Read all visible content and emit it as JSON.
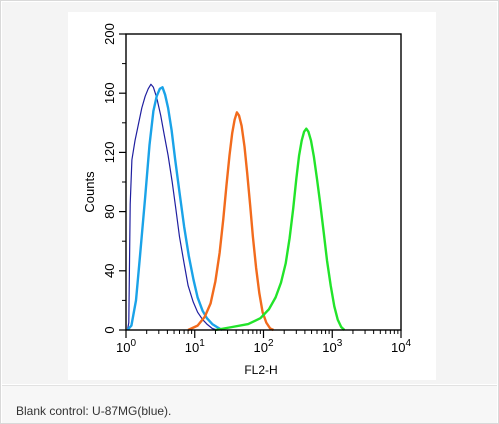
{
  "caption": "Blank control: U-87MG(blue).",
  "chart_data": {
    "type": "area",
    "title": "",
    "xlabel": "FL2-H",
    "ylabel": "Counts",
    "x_scale": "log",
    "xlim": [
      1,
      10000
    ],
    "ylim": [
      0,
      200
    ],
    "x_ticks": [
      {
        "value": 1,
        "base": "10",
        "exp": "0"
      },
      {
        "value": 10,
        "base": "10",
        "exp": "1"
      },
      {
        "value": 100,
        "base": "10",
        "exp": "2"
      },
      {
        "value": 1000,
        "base": "10",
        "exp": "3"
      },
      {
        "value": 10000,
        "base": "10",
        "exp": "4"
      }
    ],
    "y_ticks": [
      "0",
      "40",
      "80",
      "120",
      "160",
      "200"
    ],
    "grid": false,
    "series": [
      {
        "color": "#1f1fa0",
        "points": [
          [
            1.05,
            0
          ],
          [
            1.1,
            5
          ],
          [
            1.15,
            85
          ],
          [
            1.22,
            115
          ],
          [
            1.35,
            128
          ],
          [
            1.5,
            138
          ],
          [
            1.7,
            150
          ],
          [
            1.9,
            158
          ],
          [
            2.1,
            163
          ],
          [
            2.3,
            166
          ],
          [
            2.5,
            164
          ],
          [
            2.8,
            157
          ],
          [
            3.2,
            145
          ],
          [
            3.6,
            132
          ],
          [
            4.1,
            118
          ],
          [
            4.7,
            100
          ],
          [
            5.3,
            82
          ],
          [
            6,
            63
          ],
          [
            7,
            45
          ],
          [
            8,
            30
          ],
          [
            9.5,
            19
          ],
          [
            11,
            12
          ],
          [
            13,
            7
          ],
          [
            15,
            4
          ],
          [
            18,
            1
          ],
          [
            21,
            0
          ]
        ]
      },
      {
        "color": "#1aa3e8",
        "points": [
          [
            1.05,
            0
          ],
          [
            1.2,
            3
          ],
          [
            1.4,
            20
          ],
          [
            1.6,
            50
          ],
          [
            1.9,
            90
          ],
          [
            2.2,
            125
          ],
          [
            2.5,
            148
          ],
          [
            2.8,
            158
          ],
          [
            3.1,
            163
          ],
          [
            3.4,
            164
          ],
          [
            3.7,
            159
          ],
          [
            4.1,
            150
          ],
          [
            4.6,
            135
          ],
          [
            5.2,
            115
          ],
          [
            6,
            93
          ],
          [
            7,
            70
          ],
          [
            8.2,
            50
          ],
          [
            9.6,
            34
          ],
          [
            11,
            22
          ],
          [
            13,
            13
          ],
          [
            15,
            8
          ],
          [
            18,
            4
          ],
          [
            21,
            2
          ],
          [
            25,
            0
          ]
        ]
      },
      {
        "color": "#f26b1d",
        "points": [
          [
            8,
            0
          ],
          [
            11,
            3
          ],
          [
            14,
            9
          ],
          [
            17,
            18
          ],
          [
            20,
            33
          ],
          [
            23,
            52
          ],
          [
            26,
            75
          ],
          [
            29,
            98
          ],
          [
            32,
            118
          ],
          [
            35,
            133
          ],
          [
            38,
            142
          ],
          [
            41,
            147
          ],
          [
            44,
            145
          ],
          [
            48,
            138
          ],
          [
            53,
            124
          ],
          [
            58,
            106
          ],
          [
            64,
            84
          ],
          [
            70,
            63
          ],
          [
            78,
            42
          ],
          [
            87,
            25
          ],
          [
            97,
            12
          ],
          [
            110,
            5
          ],
          [
            125,
            1
          ],
          [
            140,
            0
          ]
        ]
      },
      {
        "color": "#22e42a",
        "points": [
          [
            20,
            0
          ],
          [
            35,
            2
          ],
          [
            60,
            4
          ],
          [
            90,
            8
          ],
          [
            120,
            14
          ],
          [
            150,
            22
          ],
          [
            180,
            32
          ],
          [
            210,
            45
          ],
          [
            240,
            62
          ],
          [
            270,
            82
          ],
          [
            300,
            102
          ],
          [
            330,
            118
          ],
          [
            360,
            128
          ],
          [
            390,
            134
          ],
          [
            420,
            136
          ],
          [
            450,
            134
          ],
          [
            490,
            128
          ],
          [
            540,
            117
          ],
          [
            600,
            102
          ],
          [
            670,
            85
          ],
          [
            750,
            66
          ],
          [
            840,
            47
          ],
          [
            950,
            30
          ],
          [
            1070,
            16
          ],
          [
            1200,
            7
          ],
          [
            1350,
            2
          ],
          [
            1500,
            0
          ]
        ]
      }
    ]
  }
}
